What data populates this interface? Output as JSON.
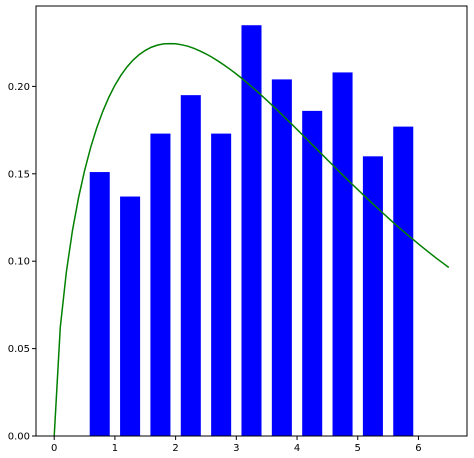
{
  "chart_data": {
    "type": "bar",
    "title": "",
    "xlabel": "",
    "ylabel": "",
    "xlim": [
      -0.3,
      6.8
    ],
    "ylim": [
      0.0,
      0.246
    ],
    "grid": false,
    "x_ticks": [
      0,
      1,
      2,
      3,
      4,
      5,
      6
    ],
    "x_tick_labels": [
      "0",
      "1",
      "2",
      "3",
      "4",
      "5",
      "6"
    ],
    "y_ticks": [
      0.0,
      0.05,
      0.1,
      0.15,
      0.2
    ],
    "y_tick_labels": [
      "0.00",
      "0.05",
      "0.10",
      "0.15",
      "0.20"
    ],
    "bar_color": "#0000ff",
    "curve_color": "#008000",
    "bar_width": 0.33,
    "bars": {
      "x": [
        0.75,
        1.25,
        1.75,
        2.25,
        2.75,
        3.25,
        3.75,
        4.25,
        4.75,
        5.25,
        5.75
      ],
      "values": [
        0.151,
        0.137,
        0.173,
        0.195,
        0.173,
        0.235,
        0.204,
        0.186,
        0.208,
        0.16,
        0.177
      ]
    },
    "curve": {
      "x": [
        0.0,
        0.1,
        0.2,
        0.3,
        0.4,
        0.5,
        0.6,
        0.7,
        0.8,
        0.9,
        1.0,
        1.1,
        1.2,
        1.3,
        1.4,
        1.5,
        1.6,
        1.7,
        1.8,
        1.9,
        2.0,
        2.1,
        2.2,
        2.3,
        2.4,
        2.5,
        2.6,
        2.7,
        2.8,
        2.9,
        3.0,
        3.1,
        3.2,
        3.3,
        3.4,
        3.5,
        3.6,
        3.7,
        3.8,
        3.9,
        4.0,
        4.1,
        4.2,
        4.3,
        4.4,
        4.5,
        4.6,
        4.7,
        4.8,
        4.9,
        5.0,
        5.1,
        5.2,
        5.3,
        5.4,
        5.5,
        5.6,
        5.7,
        5.8,
        5.9,
        6.0,
        6.1,
        6.2,
        6.3,
        6.4,
        6.5
      ],
      "y": [
        0.0,
        0.0622,
        0.0938,
        0.1174,
        0.1362,
        0.1518,
        0.165,
        0.1762,
        0.1857,
        0.1938,
        0.2007,
        0.2064,
        0.2112,
        0.2151,
        0.2182,
        0.2206,
        0.2224,
        0.2236,
        0.2243,
        0.2245,
        0.2244,
        0.2238,
        0.223,
        0.2218,
        0.2203,
        0.2186,
        0.2167,
        0.2145,
        0.2122,
        0.2097,
        0.2071,
        0.2043,
        0.2014,
        0.1984,
        0.1953,
        0.1921,
        0.1889,
        0.1856,
        0.1822,
        0.1788,
        0.1754,
        0.1719,
        0.1684,
        0.165,
        0.1615,
        0.158,
        0.1546,
        0.1511,
        0.1477,
        0.1443,
        0.141,
        0.1377,
        0.1344,
        0.1312,
        0.128,
        0.1248,
        0.1217,
        0.1187,
        0.1157,
        0.1128,
        0.1099,
        0.1071,
        0.1043,
        0.1016,
        0.099,
        0.0964
      ]
    }
  }
}
